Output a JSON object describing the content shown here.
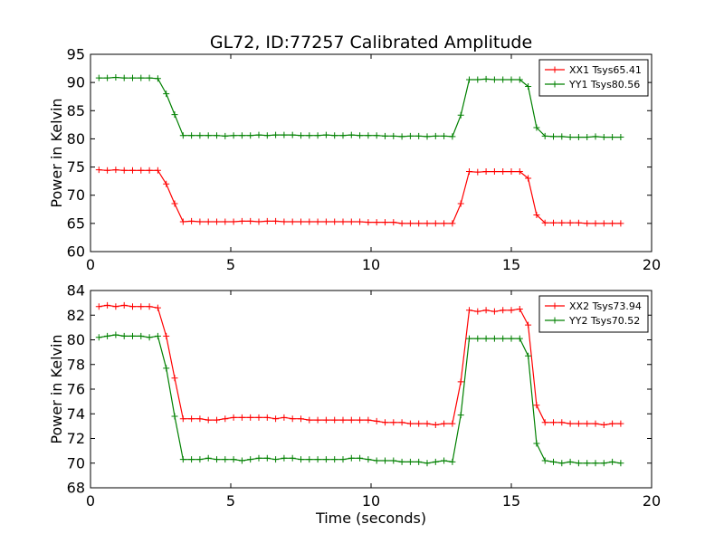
{
  "chart_data": [
    {
      "type": "line",
      "title": "GL72, ID:77257 Calibrated Amplitude",
      "xlabel": "",
      "ylabel": "Power in Kelvin",
      "xlim": [
        0,
        20
      ],
      "ylim": [
        60,
        95
      ],
      "xticks": [
        0,
        5,
        10,
        15,
        20
      ],
      "yticks": [
        60,
        65,
        70,
        75,
        80,
        85,
        90,
        95
      ],
      "grid": false,
      "legend_position": "top-right",
      "x": [
        0.3,
        0.6,
        0.9,
        1.2,
        1.5,
        1.8,
        2.1,
        2.4,
        2.7,
        3.0,
        3.3,
        3.6,
        3.9,
        4.2,
        4.5,
        4.8,
        5.1,
        5.4,
        5.7,
        6.0,
        6.3,
        6.6,
        6.9,
        7.2,
        7.5,
        7.8,
        8.1,
        8.4,
        8.7,
        9.0,
        9.3,
        9.6,
        9.9,
        10.2,
        10.5,
        10.8,
        11.1,
        11.4,
        11.7,
        12.0,
        12.3,
        12.6,
        12.9,
        13.2,
        13.5,
        13.8,
        14.1,
        14.4,
        14.7,
        15.0,
        15.3,
        15.6,
        15.9,
        16.2,
        16.5,
        16.8,
        17.1,
        17.4,
        17.7,
        18.0,
        18.3,
        18.6,
        18.9
      ],
      "series": [
        {
          "name": "XX1 Tsys65.41",
          "color": "#ff0000",
          "values": [
            74.5,
            74.4,
            74.5,
            74.4,
            74.4,
            74.4,
            74.4,
            74.4,
            72.0,
            68.5,
            65.3,
            65.4,
            65.3,
            65.3,
            65.3,
            65.3,
            65.3,
            65.4,
            65.4,
            65.3,
            65.4,
            65.4,
            65.3,
            65.3,
            65.3,
            65.3,
            65.3,
            65.3,
            65.3,
            65.3,
            65.3,
            65.3,
            65.2,
            65.2,
            65.2,
            65.2,
            65.0,
            65.0,
            65.0,
            65.0,
            65.0,
            65.0,
            65.0,
            68.5,
            74.2,
            74.1,
            74.2,
            74.2,
            74.2,
            74.2,
            74.2,
            73.0,
            66.5,
            65.1,
            65.1,
            65.1,
            65.1,
            65.1,
            65.0,
            65.0,
            65.0,
            65.0,
            65.0
          ]
        },
        {
          "name": "YY1 Tsys80.56",
          "color": "#008000",
          "values": [
            90.8,
            90.8,
            90.9,
            90.8,
            90.8,
            90.8,
            90.8,
            90.7,
            88.0,
            84.3,
            80.6,
            80.6,
            80.6,
            80.6,
            80.6,
            80.5,
            80.6,
            80.6,
            80.6,
            80.7,
            80.6,
            80.7,
            80.7,
            80.7,
            80.6,
            80.6,
            80.6,
            80.7,
            80.6,
            80.6,
            80.7,
            80.6,
            80.6,
            80.6,
            80.5,
            80.5,
            80.4,
            80.5,
            80.5,
            80.4,
            80.5,
            80.5,
            80.4,
            84.2,
            90.5,
            90.5,
            90.6,
            90.5,
            90.5,
            90.5,
            90.5,
            89.3,
            82.0,
            80.5,
            80.4,
            80.4,
            80.3,
            80.3,
            80.3,
            80.4,
            80.3,
            80.3,
            80.3
          ]
        }
      ]
    },
    {
      "type": "line",
      "title": "",
      "xlabel": "Time (seconds)",
      "ylabel": "Power in Kelvin",
      "xlim": [
        0,
        20
      ],
      "ylim": [
        68,
        84
      ],
      "xticks": [
        0,
        5,
        10,
        15,
        20
      ],
      "yticks": [
        68,
        70,
        72,
        74,
        76,
        78,
        80,
        82,
        84
      ],
      "grid": false,
      "legend_position": "top-right",
      "x": [
        0.3,
        0.6,
        0.9,
        1.2,
        1.5,
        1.8,
        2.1,
        2.4,
        2.7,
        3.0,
        3.3,
        3.6,
        3.9,
        4.2,
        4.5,
        4.8,
        5.1,
        5.4,
        5.7,
        6.0,
        6.3,
        6.6,
        6.9,
        7.2,
        7.5,
        7.8,
        8.1,
        8.4,
        8.7,
        9.0,
        9.3,
        9.6,
        9.9,
        10.2,
        10.5,
        10.8,
        11.1,
        11.4,
        11.7,
        12.0,
        12.3,
        12.6,
        12.9,
        13.2,
        13.5,
        13.8,
        14.1,
        14.4,
        14.7,
        15.0,
        15.3,
        15.6,
        15.9,
        16.2,
        16.5,
        16.8,
        17.1,
        17.4,
        17.7,
        18.0,
        18.3,
        18.6,
        18.9
      ],
      "series": [
        {
          "name": "XX2 Tsys73.94",
          "color": "#ff0000",
          "values": [
            82.7,
            82.8,
            82.7,
            82.8,
            82.7,
            82.7,
            82.7,
            82.6,
            80.3,
            76.9,
            73.6,
            73.6,
            73.6,
            73.5,
            73.5,
            73.6,
            73.7,
            73.7,
            73.7,
            73.7,
            73.7,
            73.6,
            73.7,
            73.6,
            73.6,
            73.5,
            73.5,
            73.5,
            73.5,
            73.5,
            73.5,
            73.5,
            73.5,
            73.4,
            73.3,
            73.3,
            73.3,
            73.2,
            73.2,
            73.2,
            73.1,
            73.2,
            73.2,
            76.6,
            82.4,
            82.3,
            82.4,
            82.3,
            82.4,
            82.4,
            82.5,
            81.2,
            74.7,
            73.3,
            73.3,
            73.3,
            73.2,
            73.2,
            73.2,
            73.2,
            73.1,
            73.2,
            73.2
          ]
        },
        {
          "name": "YY2 Tsys70.52",
          "color": "#008000",
          "values": [
            80.2,
            80.3,
            80.4,
            80.3,
            80.3,
            80.3,
            80.2,
            80.3,
            77.7,
            73.8,
            70.3,
            70.3,
            70.3,
            70.4,
            70.3,
            70.3,
            70.3,
            70.2,
            70.3,
            70.4,
            70.4,
            70.3,
            70.4,
            70.4,
            70.3,
            70.3,
            70.3,
            70.3,
            70.3,
            70.3,
            70.4,
            70.4,
            70.3,
            70.2,
            70.2,
            70.2,
            70.1,
            70.1,
            70.1,
            70.0,
            70.1,
            70.2,
            70.1,
            73.9,
            80.1,
            80.1,
            80.1,
            80.1,
            80.1,
            80.1,
            80.1,
            78.7,
            71.6,
            70.2,
            70.1,
            70.0,
            70.1,
            70.0,
            70.0,
            70.0,
            70.0,
            70.1,
            70.0
          ]
        }
      ]
    }
  ]
}
